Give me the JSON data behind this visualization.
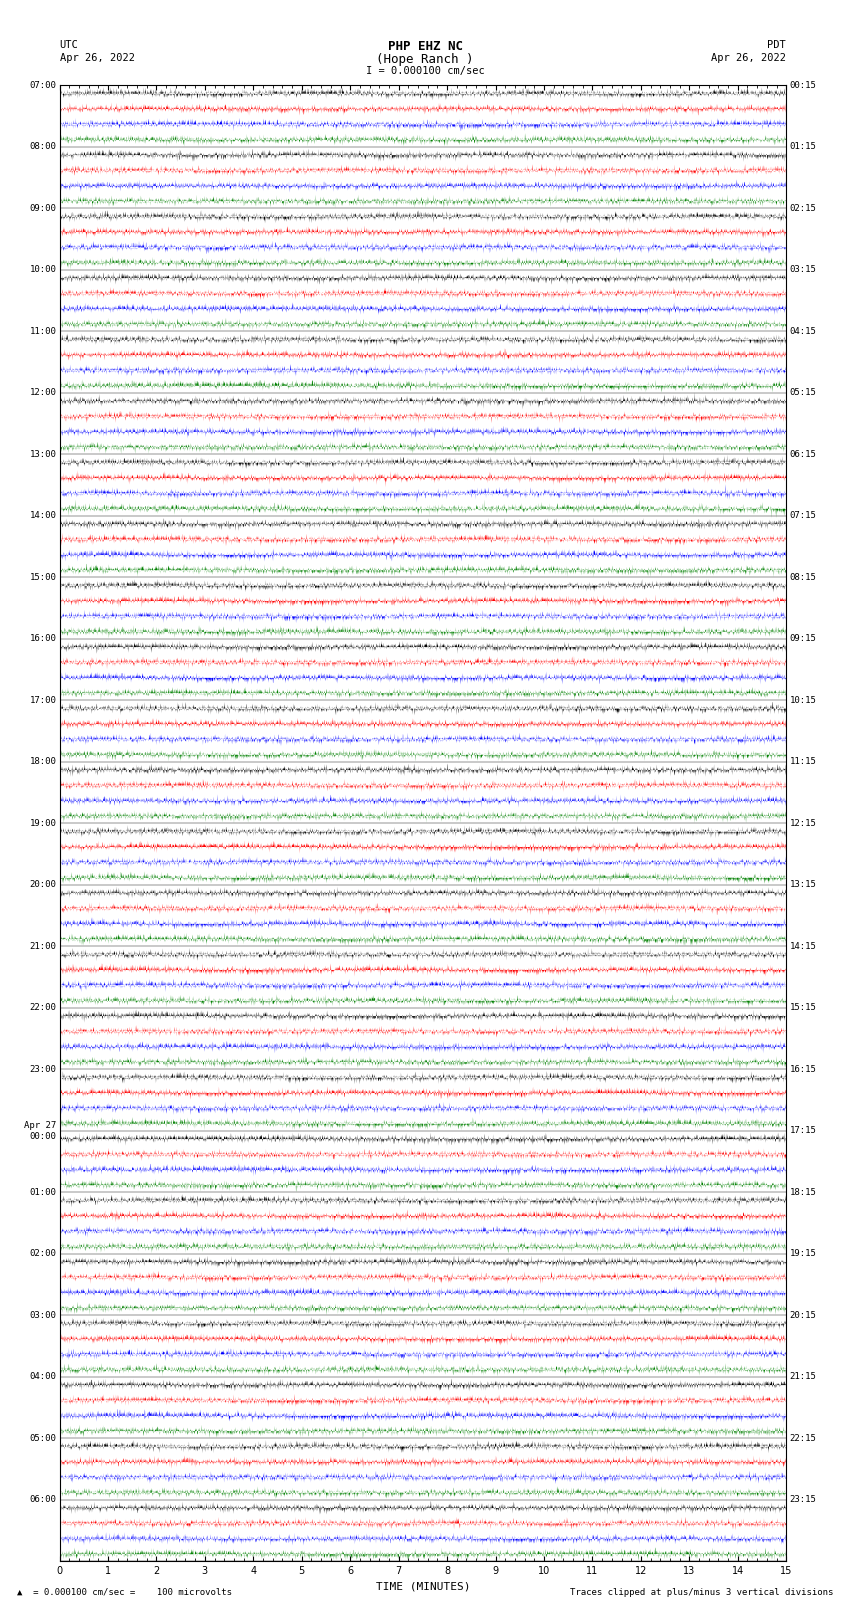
{
  "title_line1": "PHP EHZ NC",
  "title_line2": "(Hope Ranch )",
  "title_line3": "I = 0.000100 cm/sec",
  "utc_label": "UTC",
  "utc_date": "Apr 26, 2022",
  "pdt_label": "PDT",
  "pdt_date": "Apr 26, 2022",
  "xlabel": "TIME (MINUTES)",
  "footer_left": "= 0.000100 cm/sec =    100 microvolts",
  "footer_right": "Traces clipped at plus/minus 3 vertical divisions",
  "background_color": "#ffffff",
  "plot_bg": "#ffffff",
  "trace_colors": [
    "#000000",
    "#ff0000",
    "#0000ff",
    "#008000"
  ],
  "left_times": [
    "07:00",
    "08:00",
    "09:00",
    "10:00",
    "11:00",
    "12:00",
    "13:00",
    "14:00",
    "15:00",
    "16:00",
    "17:00",
    "18:00",
    "19:00",
    "20:00",
    "21:00",
    "22:00",
    "23:00",
    "Apr 27\n00:00",
    "01:00",
    "02:00",
    "03:00",
    "04:00",
    "05:00",
    "06:00"
  ],
  "right_times": [
    "00:15",
    "01:15",
    "02:15",
    "03:15",
    "04:15",
    "05:15",
    "06:15",
    "07:15",
    "08:15",
    "09:15",
    "10:15",
    "11:15",
    "12:15",
    "13:15",
    "14:15",
    "15:15",
    "16:15",
    "17:15",
    "18:15",
    "19:15",
    "20:15",
    "21:15",
    "22:15",
    "23:15"
  ],
  "num_rows": 24,
  "traces_per_row": 4,
  "minutes_per_row": 15,
  "x_ticks": [
    0,
    1,
    2,
    3,
    4,
    5,
    6,
    7,
    8,
    9,
    10,
    11,
    12,
    13,
    14,
    15
  ],
  "seed": 42
}
